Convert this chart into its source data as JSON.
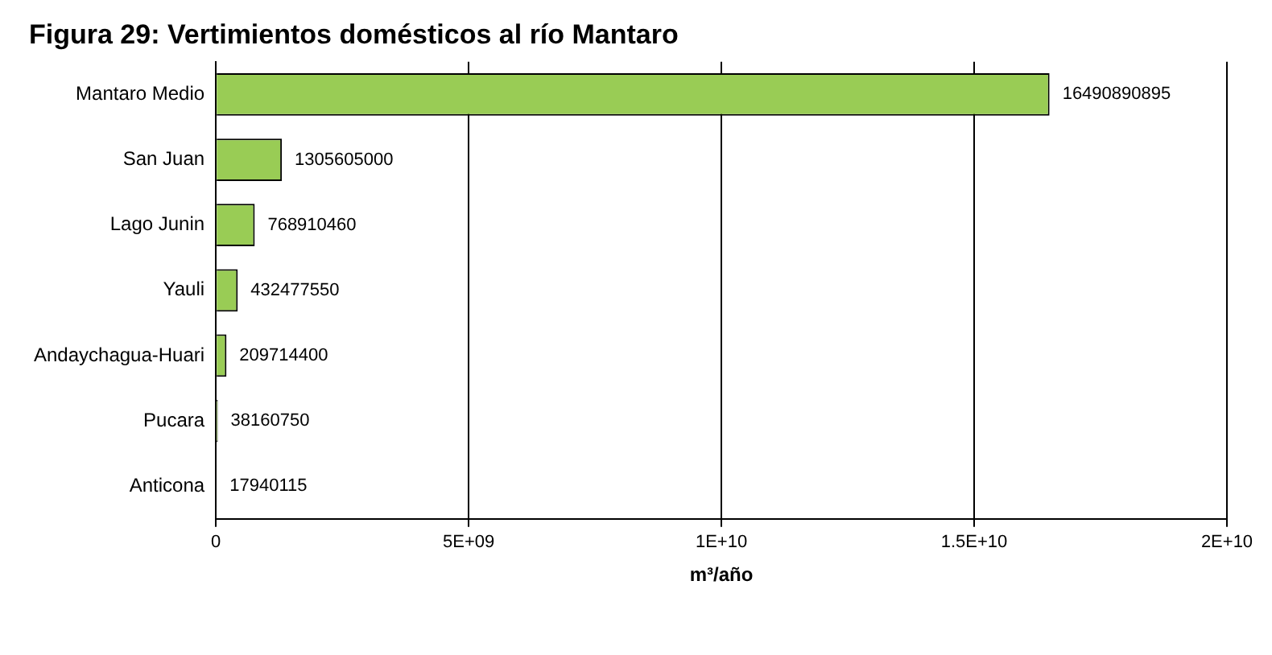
{
  "chart_data": {
    "type": "bar",
    "orientation": "horizontal",
    "title": "Figura 29: Vertimientos domésticos al río Mantaro",
    "xlabel": "m³/año",
    "categories": [
      "Mantaro Medio",
      "San Juan",
      "Lago Junin",
      "Yauli",
      "Andaychagua-Huari",
      "Pucara",
      "Anticona"
    ],
    "values": [
      16490890895,
      1305605000,
      768910460,
      432477550,
      209714400,
      38160750,
      17940115
    ],
    "color": "#99cc55",
    "xlim": [
      0,
      20000000000
    ],
    "xticks": [
      0,
      {
        "value": 5000000000,
        "label": "5E+09"
      },
      {
        "value": 10000000000,
        "label": "1E+10"
      },
      {
        "value": 15000000000,
        "label": "1.5E+10"
      },
      {
        "value": 20000000000,
        "label": "2E+10"
      }
    ],
    "grid": "x",
    "data_labels": true,
    "legend": false
  }
}
